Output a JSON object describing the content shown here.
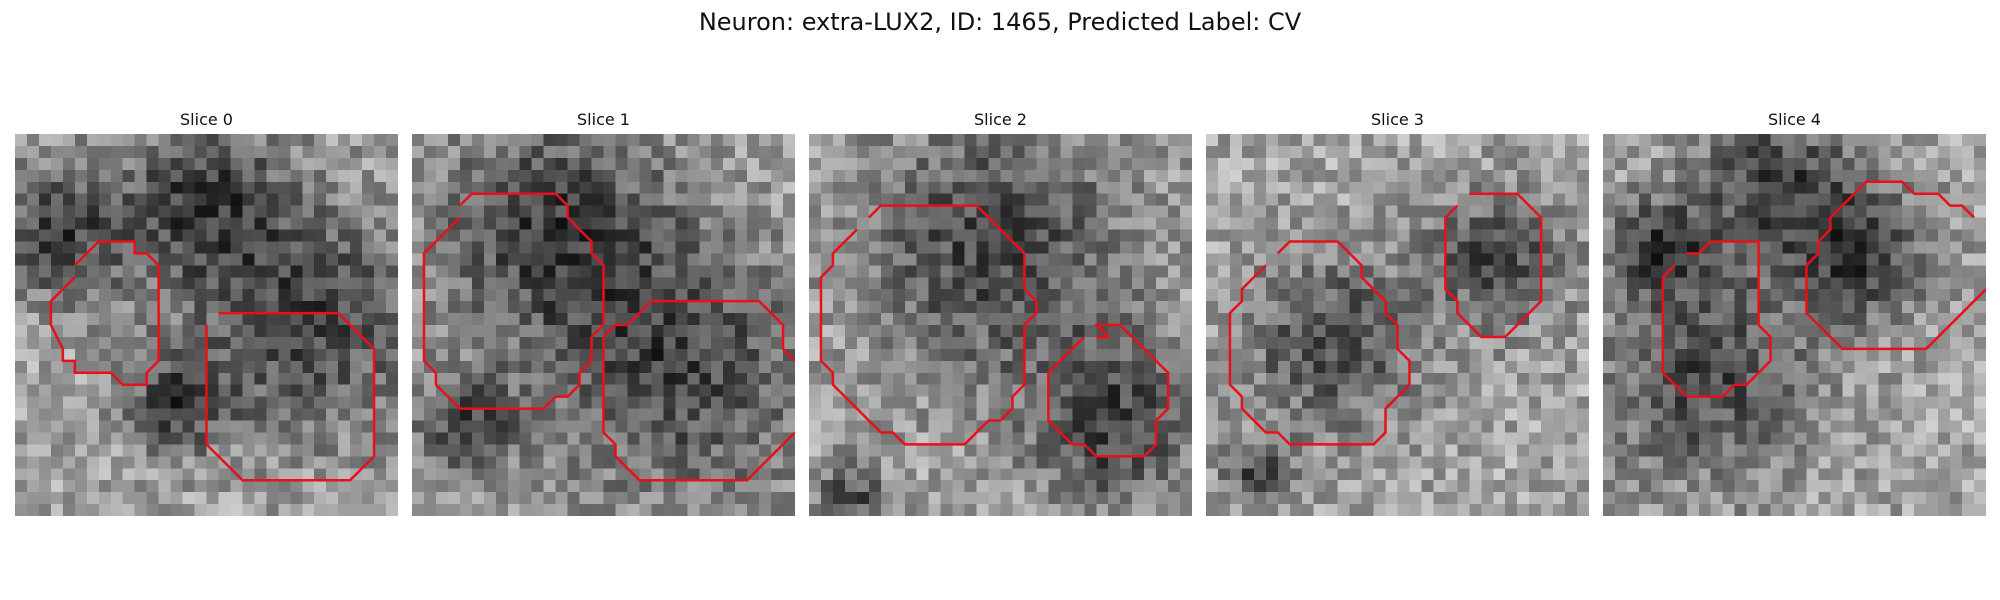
{
  "figure_title": "Neuron: extra-LUX2, ID: 1465, Predicted Label: CV",
  "colors": {
    "contour": "#e8101a",
    "text": "#111111"
  },
  "grid_size": 32,
  "slices": [
    {
      "title": "Slice 0",
      "dark_blobs": [
        [
          3,
          8,
          4
        ],
        [
          24,
          15,
          7
        ],
        [
          15,
          5,
          5
        ],
        [
          13,
          22,
          3
        ]
      ],
      "contours": [
        [
          [
            5,
            12
          ],
          [
            3,
            14
          ],
          [
            3,
            16
          ],
          [
            4,
            18
          ],
          [
            4,
            19
          ],
          [
            5,
            19
          ],
          [
            5,
            20
          ],
          [
            8,
            20
          ],
          [
            9,
            21
          ],
          [
            11,
            21
          ],
          [
            11,
            20
          ],
          [
            12,
            19
          ],
          [
            12,
            11
          ],
          [
            11,
            10
          ],
          [
            10,
            10
          ],
          [
            10,
            9
          ],
          [
            8,
            9
          ],
          [
            7,
            9
          ],
          [
            6,
            10
          ],
          [
            5,
            11
          ]
        ],
        [
          [
            17,
            15
          ],
          [
            18,
            15
          ],
          [
            27,
            15
          ],
          [
            28,
            16
          ],
          [
            29,
            17
          ],
          [
            30,
            18
          ],
          [
            30,
            27
          ],
          [
            29,
            28
          ],
          [
            28,
            29
          ],
          [
            19,
            29
          ],
          [
            18,
            28
          ],
          [
            17,
            27
          ],
          [
            16,
            26
          ],
          [
            16,
            16
          ]
        ]
      ]
    },
    {
      "title": "Slice 1",
      "dark_blobs": [
        [
          11,
          7,
          7
        ],
        [
          22,
          19,
          8
        ],
        [
          4,
          24,
          3
        ]
      ],
      "contours": [
        [
          [
            4,
            7
          ],
          [
            3,
            8
          ],
          [
            2,
            9
          ],
          [
            1,
            10
          ],
          [
            1,
            19
          ],
          [
            2,
            20
          ],
          [
            2,
            21
          ],
          [
            3,
            22
          ],
          [
            4,
            23
          ],
          [
            11,
            23
          ],
          [
            12,
            22
          ],
          [
            13,
            22
          ],
          [
            14,
            21
          ],
          [
            14,
            20
          ],
          [
            15,
            19
          ],
          [
            15,
            18
          ],
          [
            15,
            17
          ],
          [
            16,
            16
          ],
          [
            16,
            11
          ],
          [
            15,
            10
          ],
          [
            15,
            9
          ],
          [
            14,
            8
          ],
          [
            13,
            7
          ],
          [
            13,
            6
          ],
          [
            12,
            5
          ],
          [
            8,
            5
          ],
          [
            5,
            5
          ],
          [
            4,
            6
          ]
        ],
        [
          [
            16,
            17
          ],
          [
            17,
            16
          ],
          [
            18,
            16
          ],
          [
            19,
            15
          ],
          [
            20,
            14
          ],
          [
            22,
            14
          ],
          [
            29,
            14
          ],
          [
            30,
            15
          ],
          [
            31,
            16
          ],
          [
            31,
            18
          ],
          [
            32,
            19
          ]
        ],
        [
          [
            16,
            17
          ],
          [
            16,
            25
          ],
          [
            17,
            26
          ],
          [
            17,
            27
          ],
          [
            18,
            28
          ],
          [
            19,
            29
          ],
          [
            28,
            29
          ],
          [
            29,
            28
          ],
          [
            30,
            27
          ],
          [
            31,
            26
          ],
          [
            32,
            25
          ]
        ]
      ]
    },
    {
      "title": "Slice 2",
      "dark_blobs": [
        [
          15,
          9,
          8
        ],
        [
          25,
          24,
          5
        ],
        [
          3,
          30,
          2
        ]
      ],
      "contours": [
        [
          [
            4,
            8
          ],
          [
            3,
            9
          ],
          [
            2,
            10
          ],
          [
            2,
            11
          ],
          [
            1,
            12
          ],
          [
            1,
            19
          ],
          [
            2,
            20
          ],
          [
            2,
            21
          ],
          [
            3,
            22
          ],
          [
            4,
            23
          ],
          [
            5,
            24
          ],
          [
            6,
            25
          ],
          [
            7,
            25
          ],
          [
            8,
            26
          ],
          [
            13,
            26
          ],
          [
            14,
            25
          ],
          [
            15,
            24
          ],
          [
            16,
            24
          ],
          [
            17,
            23
          ],
          [
            17,
            22
          ],
          [
            18,
            21
          ],
          [
            18,
            16
          ],
          [
            19,
            15
          ],
          [
            19,
            14
          ],
          [
            18,
            13
          ],
          [
            18,
            10
          ],
          [
            17,
            9
          ],
          [
            16,
            8
          ],
          [
            15,
            7
          ],
          [
            14,
            6
          ],
          [
            6,
            6
          ],
          [
            5,
            7
          ]
        ],
        [
          [
            23,
            17
          ],
          [
            22,
            18
          ],
          [
            21,
            19
          ],
          [
            20,
            20
          ],
          [
            20,
            24
          ],
          [
            21,
            25
          ],
          [
            22,
            26
          ],
          [
            23,
            26
          ],
          [
            24,
            27
          ],
          [
            28,
            27
          ],
          [
            29,
            26
          ],
          [
            29,
            24
          ],
          [
            30,
            23
          ],
          [
            30,
            20
          ],
          [
            29,
            19
          ],
          [
            28,
            18
          ],
          [
            27,
            17
          ],
          [
            26,
            16
          ],
          [
            25,
            16
          ],
          [
            24,
            16
          ],
          [
            25,
            17
          ],
          [
            24,
            17
          ]
        ]
      ]
    },
    {
      "title": "Slice 3",
      "dark_blobs": [
        [
          10,
          17,
          5
        ],
        [
          24,
          10,
          4
        ],
        [
          4,
          28,
          2
        ]
      ],
      "contours": [
        [
          [
            5,
            11
          ],
          [
            4,
            12
          ],
          [
            3,
            13
          ],
          [
            3,
            14
          ],
          [
            2,
            15
          ],
          [
            2,
            21
          ],
          [
            3,
            22
          ],
          [
            3,
            23
          ],
          [
            4,
            24
          ],
          [
            5,
            25
          ],
          [
            6,
            25
          ],
          [
            7,
            26
          ],
          [
            14,
            26
          ],
          [
            15,
            25
          ],
          [
            15,
            23
          ],
          [
            16,
            22
          ],
          [
            17,
            21
          ],
          [
            17,
            19
          ],
          [
            16,
            18
          ],
          [
            16,
            16
          ],
          [
            15,
            15
          ],
          [
            15,
            14
          ],
          [
            14,
            13
          ],
          [
            13,
            12
          ],
          [
            13,
            11
          ],
          [
            12,
            10
          ],
          [
            11,
            9
          ],
          [
            8,
            9
          ],
          [
            7,
            9
          ],
          [
            6,
            10
          ]
        ],
        [
          [
            21,
            6
          ],
          [
            20,
            7
          ],
          [
            20,
            13
          ],
          [
            21,
            14
          ],
          [
            21,
            15
          ],
          [
            22,
            16
          ],
          [
            23,
            17
          ],
          [
            24,
            17
          ],
          [
            25,
            17
          ],
          [
            26,
            16
          ],
          [
            27,
            15
          ],
          [
            28,
            14
          ],
          [
            28,
            7
          ],
          [
            27,
            6
          ],
          [
            26,
            5
          ],
          [
            22,
            5
          ]
        ]
      ]
    },
    {
      "title": "Slice 4",
      "dark_blobs": [
        [
          8,
          20,
          6
        ],
        [
          14,
          4,
          5
        ],
        [
          21,
          10,
          4
        ],
        [
          4,
          9,
          3
        ]
      ],
      "contours": [
        [
          [
            6,
            11
          ],
          [
            5,
            12
          ],
          [
            5,
            20
          ],
          [
            6,
            21
          ],
          [
            7,
            22
          ],
          [
            10,
            22
          ],
          [
            11,
            21
          ],
          [
            12,
            21
          ],
          [
            13,
            20
          ],
          [
            14,
            19
          ],
          [
            14,
            17
          ],
          [
            13,
            16
          ],
          [
            13,
            9
          ],
          [
            11,
            9
          ],
          [
            9,
            9
          ],
          [
            8,
            10
          ],
          [
            7,
            10
          ]
        ],
        [
          [
            20,
            6
          ],
          [
            19,
            7
          ],
          [
            19,
            8
          ],
          [
            18,
            9
          ],
          [
            18,
            10
          ],
          [
            17,
            11
          ],
          [
            17,
            15
          ],
          [
            18,
            16
          ],
          [
            19,
            17
          ],
          [
            20,
            18
          ],
          [
            27,
            18
          ],
          [
            28,
            17
          ],
          [
            29,
            16
          ],
          [
            30,
            15
          ],
          [
            31,
            14
          ],
          [
            32,
            13
          ]
        ],
        [
          [
            20,
            6
          ],
          [
            21,
            5
          ],
          [
            22,
            4
          ],
          [
            25,
            4
          ],
          [
            26,
            5
          ],
          [
            28,
            5
          ],
          [
            29,
            6
          ],
          [
            30,
            6
          ],
          [
            31,
            7
          ]
        ]
      ]
    }
  ]
}
